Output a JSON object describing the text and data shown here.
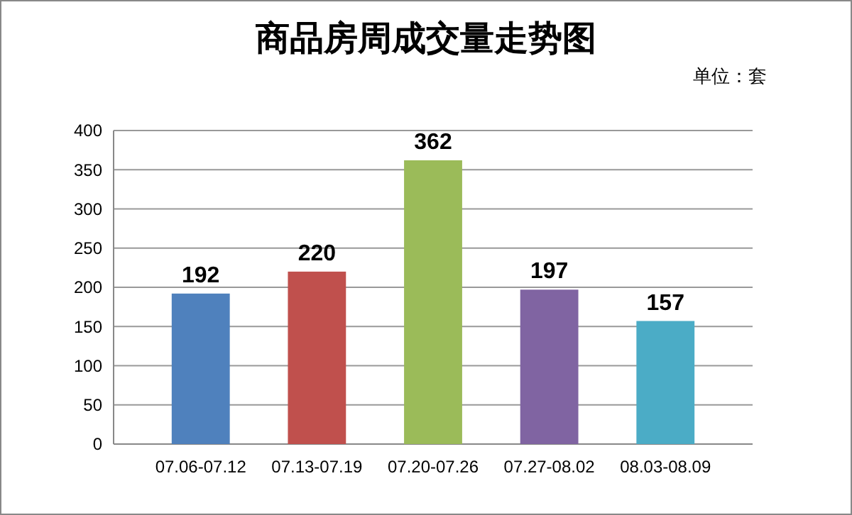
{
  "chart_data": {
    "type": "bar",
    "title": "商品房周成交量走势图",
    "annotations": [
      "单位：套"
    ],
    "categories": [
      "07.06-07.12",
      "07.13-07.19",
      "07.20-07.26",
      "07.27-08.02",
      "08.03-08.09"
    ],
    "values": [
      192,
      220,
      362,
      197,
      157
    ],
    "colors": [
      "#4f81bd",
      "#c0504d",
      "#9bbb59",
      "#8064a2",
      "#4bacc6"
    ],
    "ylim": [
      0,
      400
    ],
    "yticks": [
      0,
      50,
      100,
      150,
      200,
      250,
      300,
      350,
      400
    ],
    "grid": "y",
    "data_labels": true
  }
}
